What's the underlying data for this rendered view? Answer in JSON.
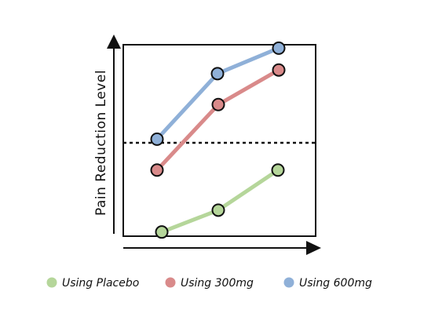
{
  "chart_data": {
    "type": "line",
    "title": "",
    "xlabel": "",
    "ylabel": "Pain Reduction Level",
    "x": [
      1,
      2,
      3
    ],
    "ylim": [
      0,
      10
    ],
    "grid": false,
    "reference_line": {
      "y": 5.0,
      "style": "dotted"
    },
    "legend_position": "bottom",
    "series": [
      {
        "name": "Using Placebo",
        "color": "#b5d69a",
        "values": [
          0.1,
          1.3,
          3.5
        ]
      },
      {
        "name": "Using 300mg",
        "color": "#d98a8a",
        "values": [
          3.5,
          7.1,
          9.0
        ]
      },
      {
        "name": "Using 600mg",
        "color": "#8fb0d8",
        "values": [
          5.2,
          8.8,
          10.2
        ]
      }
    ]
  }
}
